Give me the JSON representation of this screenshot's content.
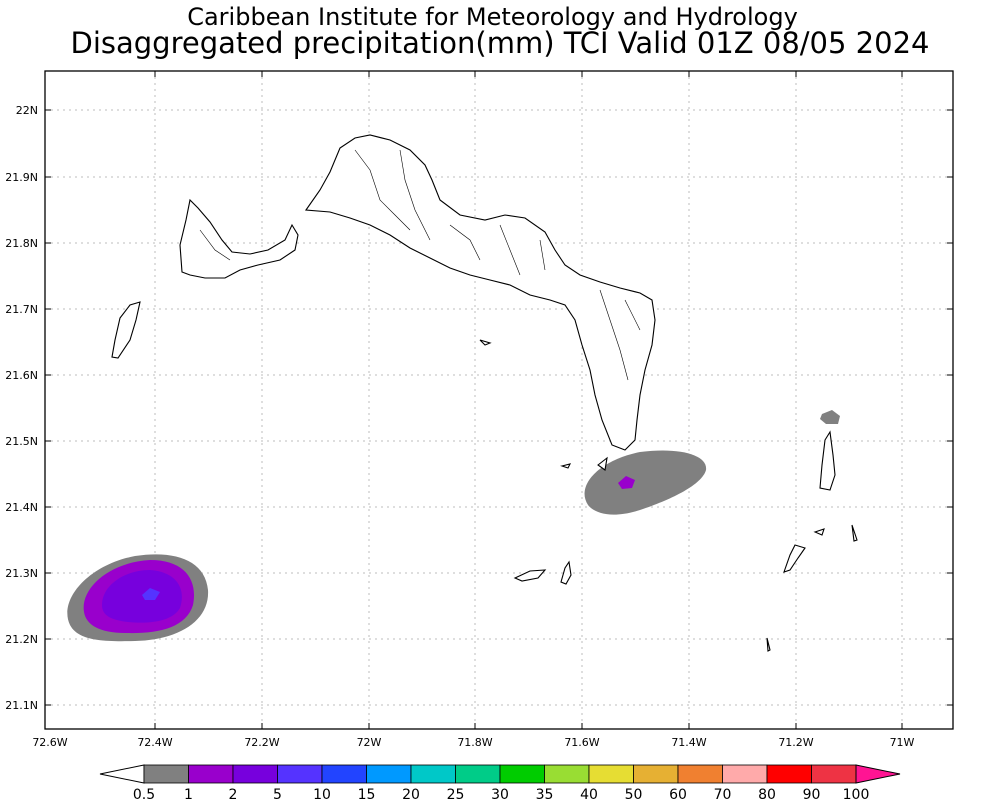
{
  "title_line1": "Caribbean Institute for Meteorology and Hydrology",
  "title_line2": "Disaggregated precipitation(mm) TCI Valid 01Z 08/05 2024",
  "lat_labels": [
    "22N",
    "21.9N",
    "21.8N",
    "21.7N",
    "21.6N",
    "21.5N",
    "21.4N",
    "21.3N",
    "21.2N",
    "21.1N"
  ],
  "lon_labels": [
    "72.6W",
    "72.4W",
    "72.2W",
    "72W",
    "71.8W",
    "71.6W",
    "71.4W",
    "71.2W",
    "71W"
  ],
  "colorbar": {
    "labels": [
      "0.5",
      "1",
      "2",
      "5",
      "10",
      "15",
      "20",
      "25",
      "30",
      "35",
      "40",
      "50",
      "60",
      "70",
      "80",
      "90",
      "100"
    ],
    "colors": [
      "#808080",
      "#9900cc",
      "#7700dd",
      "#5533ff",
      "#2244ff",
      "#0099ff",
      "#00c8c8",
      "#00cc88",
      "#00cc00",
      "#99dd33",
      "#e6dd33",
      "#e6b033",
      "#f08030",
      "#ffaaaa",
      "#ff0000",
      "#ee3344"
    ],
    "low_arrow_color": "#ffffff",
    "high_arrow_color": "#ff1493"
  },
  "chart_data": {
    "type": "heatmap",
    "title": "Disaggregated precipitation(mm) TCI Valid 01Z 08/05 2024",
    "variable": "precipitation (mm)",
    "xlim": [
      -72.6,
      -70.9
    ],
    "ylim": [
      21.06,
      22.06
    ],
    "precipitation_cells": [
      {
        "lon": -72.4,
        "lat": 21.27,
        "max_mm": 5
      },
      {
        "lon": -71.52,
        "lat": 21.44,
        "max_mm": 1
      }
    ]
  }
}
